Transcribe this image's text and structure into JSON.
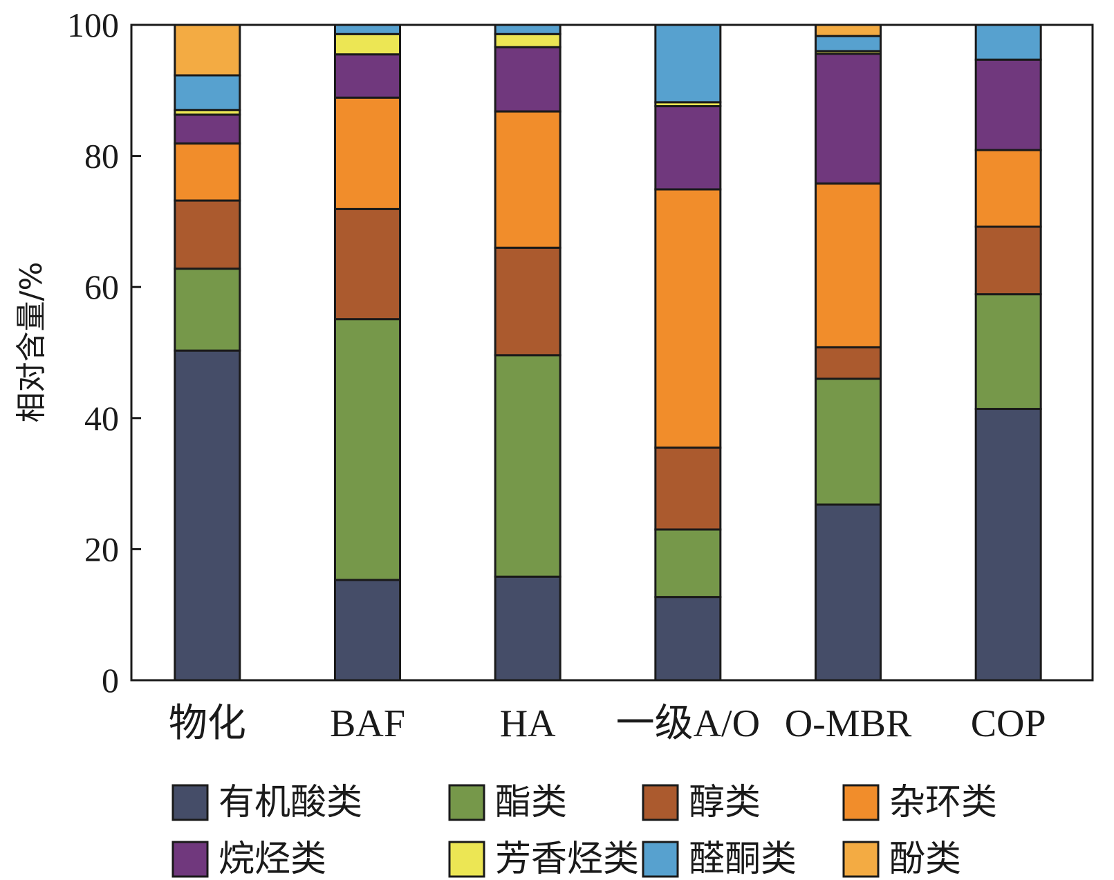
{
  "chart_data": {
    "type": "bar",
    "stacked": true,
    "title": "",
    "xlabel": "",
    "ylabel": "相对含量/%",
    "ylim": [
      0,
      100
    ],
    "yticks": [
      0,
      20,
      40,
      60,
      80,
      100
    ],
    "grid": false,
    "legend_position": "bottom",
    "categories": [
      "物化",
      "BAF",
      "HA",
      "一级A/O",
      "O-MBR",
      "COP"
    ],
    "series": [
      {
        "name": "有机酸类",
        "color": "#454d68",
        "values": [
          50.3,
          15.3,
          15.8,
          12.7,
          26.8,
          41.4
        ]
      },
      {
        "name": "酯类",
        "color": "#76984a",
        "values": [
          12.5,
          39.8,
          33.8,
          10.3,
          19.2,
          17.5
        ]
      },
      {
        "name": "醇类",
        "color": "#ab5a2e",
        "values": [
          10.4,
          16.8,
          16.4,
          12.5,
          4.8,
          10.3
        ]
      },
      {
        "name": "杂环类",
        "color": "#f18d2b",
        "values": [
          8.7,
          17.0,
          20.8,
          39.4,
          25.0,
          11.7
        ]
      },
      {
        "name": "烷烃类",
        "color": "#70387d",
        "values": [
          4.4,
          6.6,
          9.8,
          12.7,
          19.8,
          13.8
        ]
      },
      {
        "name": "芳香烃类",
        "color": "#ece654",
        "values": [
          0.7,
          3.1,
          2.0,
          0.6,
          0.4,
          0.0
        ]
      },
      {
        "name": "醛酮类",
        "color": "#57a1cf",
        "values": [
          5.3,
          1.4,
          1.4,
          11.8,
          2.3,
          5.3
        ]
      },
      {
        "name": "酚类",
        "color": "#f3ab43",
        "values": [
          7.7,
          0.0,
          0.0,
          0.0,
          1.7,
          0.0
        ]
      }
    ]
  }
}
